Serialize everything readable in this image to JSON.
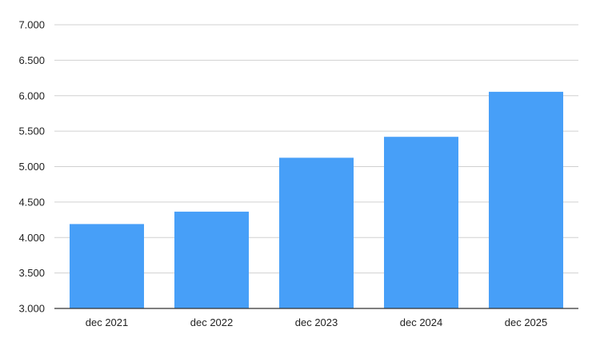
{
  "chart_data": {
    "type": "bar",
    "title": "",
    "xlabel": "",
    "ylabel": "",
    "categories": [
      "dec 2021",
      "dec 2022",
      "dec 2023",
      "dec 2024",
      "dec 2025"
    ],
    "values": [
      4190,
      4365,
      5125,
      5420,
      6055
    ],
    "ylim": [
      3000,
      7000
    ],
    "yticks": [
      3000,
      3500,
      4000,
      4500,
      5000,
      5500,
      6000,
      6500,
      7000
    ],
    "ytick_labels": [
      "3.000",
      "3.500",
      "4.000",
      "4.500",
      "5.000",
      "5.500",
      "6.000",
      "6.500",
      "7.000"
    ],
    "grid": true,
    "legend": "none",
    "colors": {
      "bar": "#479ff8",
      "grid": "#d0d0d0",
      "axis": "#333333"
    }
  }
}
